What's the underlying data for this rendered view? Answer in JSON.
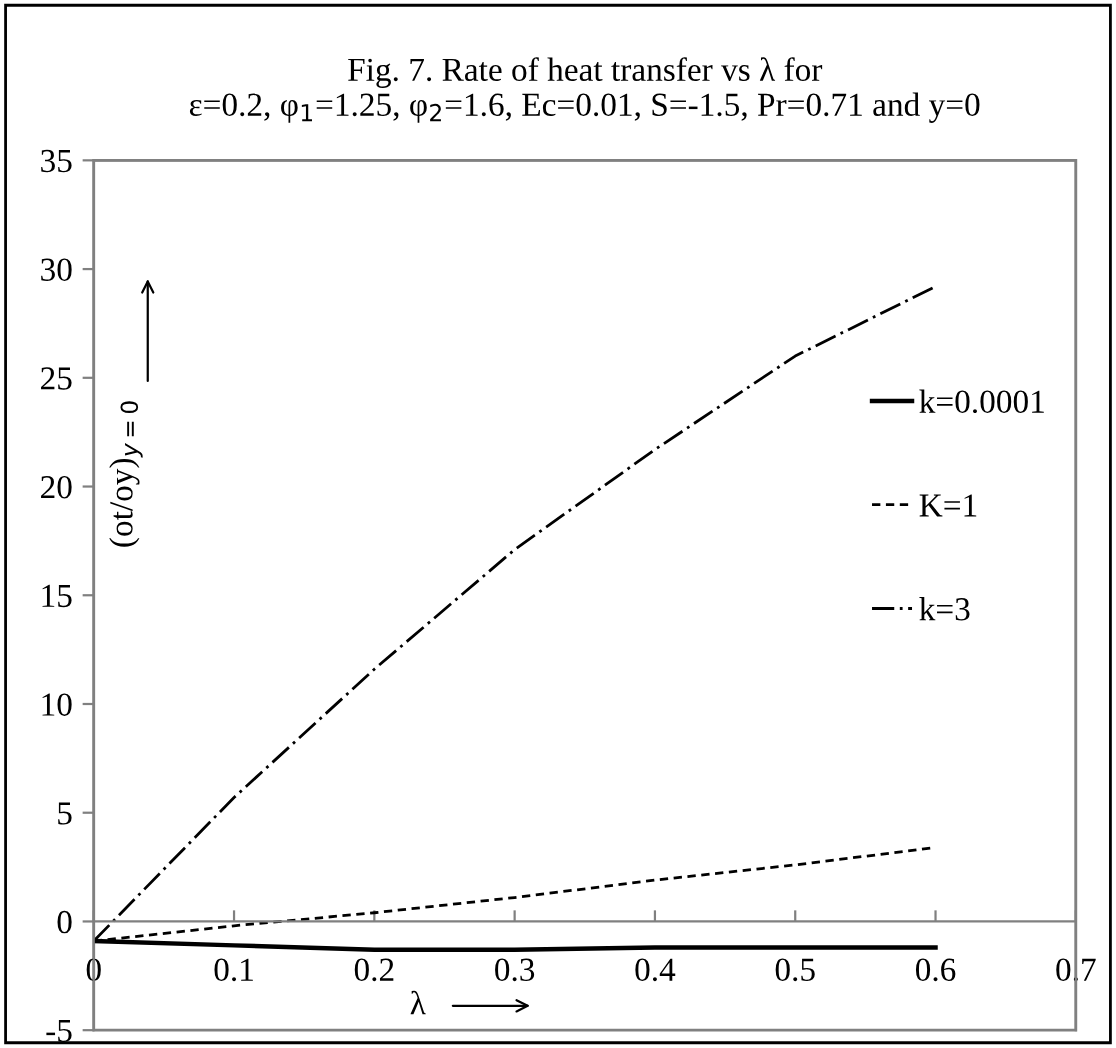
{
  "chart_data": {
    "type": "line",
    "title": "Fig. 7. Rate of heat transfer vs λ for\nε=0.2, φ$_{1}$=1.25, φ$_{2}$=1.6, Ec=0.01, S=-1.5, Pr=0.71 and y=0",
    "xlabel": "λ",
    "ylabel": "(ot/oy)$_{y=0}$",
    "x": [
      0,
      0.1,
      0.2,
      0.3,
      0.4,
      0.5,
      0.6
    ],
    "series": [
      {
        "name": "k=0.0001",
        "color": "#000000",
        "line_style": "solid",
        "values": [
          -0.9,
          -1.1,
          -1.3,
          -1.3,
          -1.2,
          -1.2,
          -1.2
        ]
      },
      {
        "name": "K=1",
        "color": "#000000",
        "line_style": "dashed",
        "values": [
          -0.9,
          -0.2,
          0.4,
          1.1,
          1.9,
          2.6,
          3.4
        ]
      },
      {
        "name": "k=3",
        "color": "#000000",
        "line_style": "dashdot",
        "values": [
          -0.9,
          5.7,
          11.6,
          17.1,
          21.7,
          26.0,
          29.2
        ]
      }
    ],
    "xlim": [
      0,
      0.7
    ],
    "xticks": [
      0,
      0.1,
      0.2,
      0.3,
      0.4,
      0.5,
      0.6,
      0.7
    ],
    "ylim": [
      -5,
      35
    ],
    "yticks": [
      -5,
      0,
      5,
      10,
      15,
      20,
      25,
      30,
      35
    ],
    "grid": false,
    "legend": "right",
    "marker": "none"
  }
}
